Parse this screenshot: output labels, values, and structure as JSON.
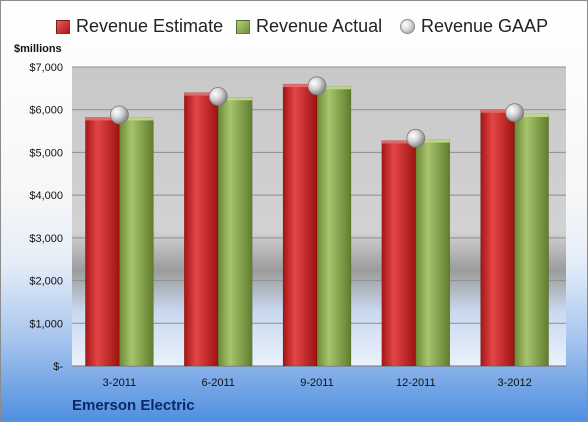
{
  "unit_label": "$millions",
  "company": "Emerson Electric",
  "chart_data": {
    "type": "bar",
    "categories": [
      "3-2011",
      "6-2011",
      "9-2011",
      "12-2011",
      "3-2012"
    ],
    "series": [
      {
        "name": "Revenue Estimate",
        "values": [
          5820,
          6400,
          6600,
          5280,
          6000
        ],
        "color": "#c42222"
      },
      {
        "name": "Revenue Actual",
        "values": [
          5820,
          6290,
          6550,
          5300,
          5900
        ],
        "color": "#8cab52"
      },
      {
        "name": "Revenue GAAP",
        "values": [
          5880,
          6310,
          6560,
          5330,
          5930
        ],
        "color": "#b8b8b8",
        "marker": "sphere"
      }
    ],
    "y_ticks": [
      "$-",
      "$1,000",
      "$2,000",
      "$3,000",
      "$4,000",
      "$5,000",
      "$6,000",
      "$7,000"
    ],
    "ylim": [
      0,
      7000
    ],
    "y_step": 1000,
    "grid": true,
    "legend": "top"
  }
}
